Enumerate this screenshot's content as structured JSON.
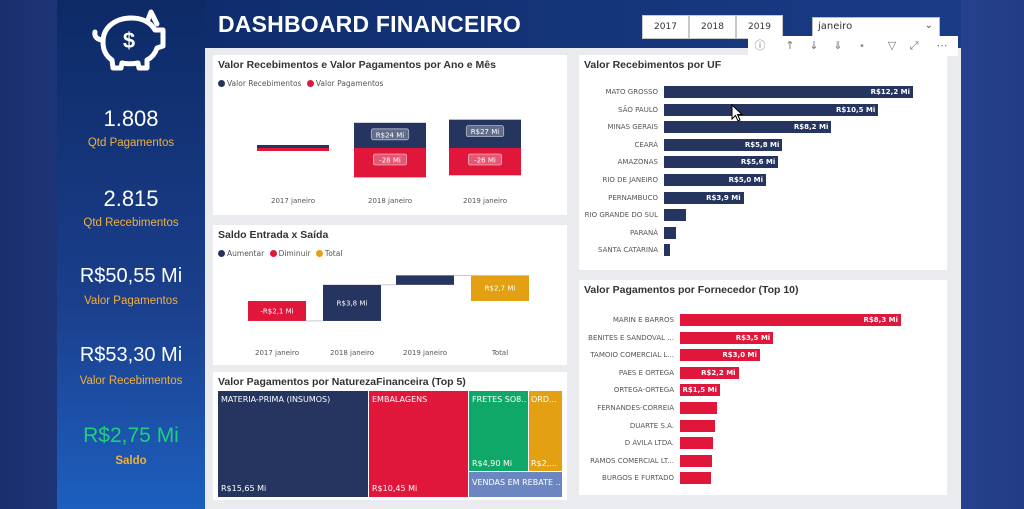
{
  "header": {
    "title": "DASHBOARD FINANCEIRO"
  },
  "filters": {
    "years": [
      "2017",
      "2018",
      "2019"
    ],
    "month": {
      "value": "janeiro"
    }
  },
  "kpis": [
    {
      "value": "1.808",
      "label": "Qtd Pagamentos"
    },
    {
      "value": "2.815",
      "label": "Qtd Recebimentos"
    },
    {
      "value": "R$50,55 Mi",
      "label": "Valor Pagamentos"
    },
    {
      "value": "R$53,30 Mi",
      "label": "Valor Recebimentos"
    },
    {
      "value": "R$2,75 Mi",
      "label": "Saldo"
    }
  ],
  "colors": {
    "navy": "#26355f",
    "red": "#e0163b",
    "green": "#0fa868",
    "orange": "#e2a012",
    "gray_blue": "#6b86c1",
    "saldo": "#1fd07b"
  },
  "chart_data": [
    {
      "type": "bar",
      "title": "Valor Recebimentos e Valor Pagamentos por Ano e Mês",
      "legend": [
        "Valor Recebimentos",
        "Valor Pagamentos"
      ],
      "categories": [
        "2017 janeiro",
        "2018 janeiro",
        "2019 janeiro"
      ],
      "series": [
        {
          "name": "Valor Recebimentos",
          "values": [
            2.1,
            24,
            27
          ],
          "labels": [
            "",
            "R$24 Mi",
            "R$27 Mi"
          ]
        },
        {
          "name": "Valor Pagamentos",
          "values": [
            -2.1,
            -28,
            -26
          ],
          "labels": [
            "",
            "-28 Mi",
            "-26 Mi"
          ]
        }
      ]
    },
    {
      "type": "bar",
      "title": "Saldo Entrada x Saída",
      "legend": [
        "Aumentar",
        "Diminuir",
        "Total"
      ],
      "categories": [
        "2017 janeiro",
        "2018 janeiro",
        "2019 janeiro",
        "Total"
      ],
      "values": [
        -2.1,
        3.8,
        1.0,
        2.7
      ],
      "labels": [
        "-R$2,1 Mi",
        "R$3,8 Mi",
        "",
        "R$2,7 Mi"
      ]
    },
    {
      "type": "bar",
      "title": "Valor Recebimentos por UF",
      "categories": [
        "MATO GROSSO",
        "SÃO PAULO",
        "MINAS GERAIS",
        "CEARÁ",
        "AMAZONAS",
        "RIO DE JANEIRO",
        "PERNAMBUCO",
        "RIO GRANDE DO SUL",
        "PARANÁ",
        "SANTA CATARINA"
      ],
      "values": [
        12.2,
        10.5,
        8.2,
        5.8,
        5.6,
        5.0,
        3.9,
        1.1,
        0.6,
        0.3
      ],
      "labels": [
        "R$12,2 Mi",
        "R$10,5 Mi",
        "R$8,2 Mi",
        "R$5,8 Mi",
        "R$5,6 Mi",
        "R$5,0 Mi",
        "R$3,9 Mi",
        "",
        "",
        ""
      ]
    },
    {
      "type": "bar",
      "title": "Valor Pagamentos por Fornecedor (Top 10)",
      "categories": [
        "MARIN E BARROS",
        "BENITES E SANDOVAL ...",
        "TAMOIO COMERCIAL L...",
        "PAES E ORTEGA",
        "ORTEGA-ORTEGA",
        "FERNANDES-CORREIA",
        "DUARTE S.A.",
        "D ÁVILA LTDA.",
        "RAMOS COMERCIAL LT...",
        "BURGOS E FURTADO"
      ],
      "values": [
        8.3,
        3.5,
        3.0,
        2.2,
        1.5,
        1.4,
        1.3,
        1.25,
        1.2,
        1.15
      ],
      "labels": [
        "R$8,3 Mi",
        "R$3,5 Mi",
        "R$3,0 Mi",
        "R$2,2 Mi",
        "R$1,5 Mi",
        "",
        "",
        "",
        "",
        ""
      ]
    },
    {
      "type": "treemap",
      "title": "Valor Pagamentos por NaturezaFinanceira (Top 5)",
      "categories": [
        "MATERIA-PRIMA (INSUMOS)",
        "EMBALAGENS",
        "FRETES SO8...",
        "ORD...",
        "VENDAS EM REBATE ..."
      ],
      "values": [
        15.65,
        10.45,
        4.9,
        2.0,
        1.5
      ],
      "labels": [
        "R$15,65 Mi",
        "R$10,45 Mi",
        "R$4,90 Mi",
        "R$2,...",
        ""
      ]
    }
  ]
}
